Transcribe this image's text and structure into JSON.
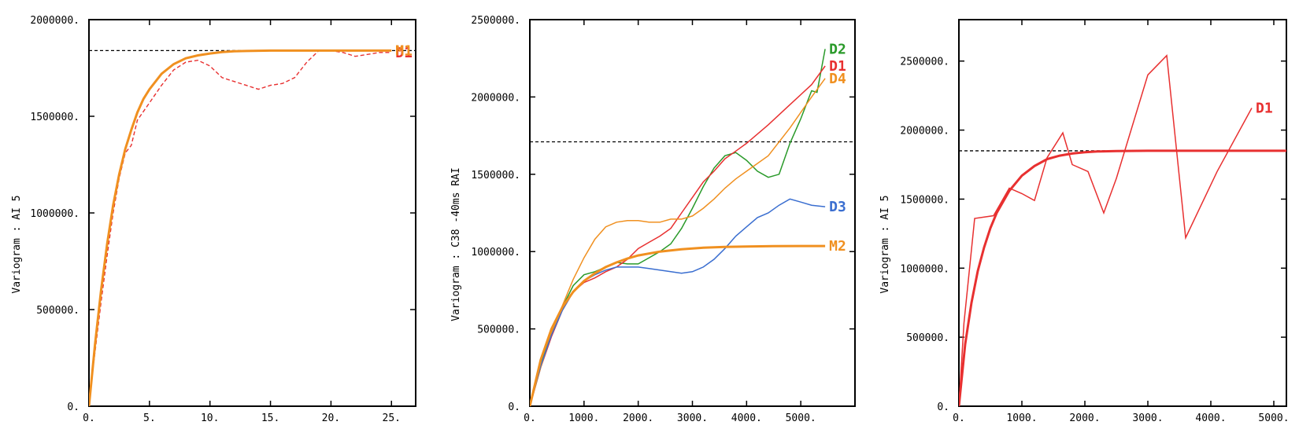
{
  "chart_data": [
    {
      "type": "line",
      "ylabel": "Variogram : AI 5",
      "xlim": [
        0,
        27
      ],
      "ylim": [
        0,
        2000000
      ],
      "xticks": [
        0,
        5,
        10,
        15,
        20,
        25
      ],
      "xtick_labels": [
        "0.",
        "5.",
        "10.",
        "15.",
        "20.",
        "25."
      ],
      "yticks": [
        0,
        500000,
        1000000,
        1500000,
        2000000
      ],
      "ytick_labels": [
        "0.",
        "500000.",
        "1000000.",
        "1500000.",
        "2000000."
      ],
      "sill": 1840000,
      "series": [
        {
          "name": "D1",
          "label": "D1",
          "color": "#e83030",
          "style": "dashed",
          "x": [
            0,
            0.5,
            1,
            1.5,
            2,
            2.5,
            3,
            3.5,
            4,
            5,
            6,
            7,
            8,
            9,
            10,
            11,
            12,
            13,
            14,
            15,
            16,
            17,
            18,
            19,
            20,
            21,
            22,
            23,
            24,
            25
          ],
          "y": [
            30000,
            280000,
            540000,
            780000,
            1000000,
            1180000,
            1310000,
            1350000,
            1480000,
            1570000,
            1660000,
            1740000,
            1780000,
            1790000,
            1760000,
            1700000,
            1680000,
            1660000,
            1640000,
            1660000,
            1670000,
            1700000,
            1780000,
            1840000,
            1840000,
            1830000,
            1810000,
            1820000,
            1830000,
            1830000
          ]
        },
        {
          "name": "M1",
          "label": "M1",
          "color": "#f09020",
          "style": "solid-thick",
          "x": [
            0,
            0.5,
            1,
            1.5,
            2,
            2.5,
            3,
            3.5,
            4,
            4.5,
            5,
            6,
            7,
            8,
            9,
            10,
            11,
            12,
            13,
            14,
            15,
            17,
            19,
            21,
            23,
            25
          ],
          "y": [
            0,
            320000,
            600000,
            840000,
            1040000,
            1200000,
            1330000,
            1430000,
            1520000,
            1590000,
            1640000,
            1720000,
            1770000,
            1800000,
            1815000,
            1825000,
            1832000,
            1836000,
            1838000,
            1839000,
            1840000,
            1840000,
            1840000,
            1840000,
            1840000,
            1840000
          ]
        }
      ]
    },
    {
      "type": "line",
      "ylabel": "Variogram : C38 -40ms RAI",
      "xlim": [
        0,
        6000
      ],
      "ylim": [
        0,
        2500000
      ],
      "xticks": [
        0,
        1000,
        2000,
        3000,
        4000,
        5000
      ],
      "xtick_labels": [
        "0.",
        "1000.",
        "2000.",
        "3000.",
        "4000.",
        "5000."
      ],
      "yticks": [
        0,
        500000,
        1000000,
        1500000,
        2000000,
        2500000
      ],
      "ytick_labels": [
        "0.",
        "500000.",
        "1000000.",
        "1500000.",
        "2000000.",
        "2500000."
      ],
      "sill": 1710000,
      "series": [
        {
          "name": "D2",
          "label": "D2",
          "color": "#2a9a2a",
          "style": "solid",
          "x": [
            0,
            200,
            400,
            600,
            800,
            1000,
            1200,
            1400,
            1600,
            1800,
            2000,
            2200,
            2400,
            2600,
            2800,
            3000,
            3200,
            3400,
            3600,
            3800,
            4000,
            4200,
            4400,
            4600,
            4800,
            5000,
            5200,
            5300,
            5450
          ],
          "y": [
            0,
            280000,
            480000,
            640000,
            780000,
            850000,
            870000,
            900000,
            930000,
            920000,
            920000,
            960000,
            1000000,
            1050000,
            1150000,
            1280000,
            1420000,
            1540000,
            1620000,
            1640000,
            1590000,
            1520000,
            1480000,
            1500000,
            1700000,
            1860000,
            2040000,
            2030000,
            2310000
          ]
        },
        {
          "name": "D1",
          "label": "D1",
          "color": "#e83030",
          "style": "solid",
          "x": [
            0,
            200,
            400,
            600,
            800,
            1000,
            1200,
            1400,
            1600,
            1800,
            2000,
            2200,
            2400,
            2600,
            2800,
            3000,
            3200,
            3400,
            3600,
            3800,
            4000,
            4400,
            4800,
            5200,
            5450
          ],
          "y": [
            0,
            250000,
            450000,
            620000,
            740000,
            800000,
            830000,
            870000,
            900000,
            950000,
            1020000,
            1060000,
            1100000,
            1150000,
            1250000,
            1350000,
            1450000,
            1520000,
            1600000,
            1650000,
            1700000,
            1820000,
            1950000,
            2080000,
            2200000
          ]
        },
        {
          "name": "D4",
          "label": "D4",
          "color": "#f09020",
          "style": "solid",
          "x": [
            0,
            200,
            400,
            600,
            800,
            1000,
            1200,
            1400,
            1600,
            1800,
            2000,
            2200,
            2400,
            2600,
            2800,
            3000,
            3200,
            3400,
            3600,
            3800,
            4000,
            4400,
            4800,
            5200,
            5450
          ],
          "y": [
            0,
            250000,
            470000,
            650000,
            820000,
            960000,
            1080000,
            1160000,
            1190000,
            1200000,
            1200000,
            1190000,
            1190000,
            1210000,
            1210000,
            1230000,
            1280000,
            1340000,
            1410000,
            1470000,
            1520000,
            1620000,
            1800000,
            2000000,
            2120000
          ]
        },
        {
          "name": "D3",
          "label": "D3",
          "color": "#3a6ed0",
          "style": "solid",
          "x": [
            0,
            200,
            400,
            600,
            800,
            1000,
            1200,
            1400,
            1600,
            1800,
            2000,
            2200,
            2400,
            2600,
            2800,
            3000,
            3200,
            3400,
            3600,
            3800,
            4000,
            4200,
            4400,
            4600,
            4800,
            5000,
            5200,
            5450
          ],
          "y": [
            0,
            260000,
            460000,
            620000,
            740000,
            810000,
            850000,
            880000,
            900000,
            900000,
            900000,
            890000,
            880000,
            870000,
            860000,
            870000,
            900000,
            950000,
            1020000,
            1100000,
            1160000,
            1220000,
            1250000,
            1300000,
            1340000,
            1320000,
            1300000,
            1290000
          ]
        },
        {
          "name": "M2",
          "label": "M2",
          "color": "#f09020",
          "style": "solid-thick",
          "x": [
            0,
            200,
            400,
            600,
            800,
            1000,
            1200,
            1400,
            1600,
            1800,
            2000,
            2400,
            2800,
            3200,
            3600,
            4000,
            4500,
            5000,
            5450
          ],
          "y": [
            0,
            300000,
            500000,
            640000,
            740000,
            810000,
            860000,
            900000,
            930000,
            955000,
            975000,
            1000000,
            1015000,
            1025000,
            1030000,
            1033000,
            1035000,
            1036000,
            1036000
          ]
        }
      ]
    },
    {
      "type": "line",
      "ylabel": "Variogram : AI 5",
      "xlim": [
        0,
        5200
      ],
      "ylim": [
        0,
        2800000
      ],
      "xticks": [
        0,
        1000,
        2000,
        3000,
        4000,
        5000
      ],
      "xtick_labels": [
        "0.",
        "1000.",
        "2000.",
        "3000.",
        "4000.",
        "5000."
      ],
      "yticks": [
        0,
        500000,
        1000000,
        1500000,
        2000000,
        2500000
      ],
      "ytick_labels": [
        "0.",
        "500000.",
        "1000000.",
        "1500000.",
        "2000000.",
        "2500000."
      ],
      "sill": 1850000,
      "series": [
        {
          "name": "D1",
          "label": "D1",
          "color": "#e83030",
          "style": "solid",
          "x": [
            0,
            80,
            250,
            550,
            800,
            1000,
            1200,
            1400,
            1650,
            1800,
            2050,
            2300,
            2500,
            2700,
            3000,
            3300,
            3600,
            4100,
            4650
          ],
          "y": [
            0,
            600000,
            1360000,
            1380000,
            1580000,
            1540000,
            1490000,
            1800000,
            1980000,
            1750000,
            1700000,
            1400000,
            1650000,
            1950000,
            2400000,
            2540000,
            1220000,
            1700000,
            2160000
          ]
        },
        {
          "name": "M",
          "label": "",
          "color": "#e83030",
          "style": "solid-thick",
          "x": [
            0,
            100,
            200,
            300,
            400,
            500,
            600,
            800,
            1000,
            1200,
            1400,
            1600,
            1800,
            2000,
            2200,
            2500,
            3000,
            3500,
            4000,
            4500,
            5000,
            5200
          ],
          "y": [
            0,
            450000,
            750000,
            980000,
            1150000,
            1290000,
            1400000,
            1560000,
            1670000,
            1740000,
            1790000,
            1815000,
            1830000,
            1840000,
            1845000,
            1848000,
            1850000,
            1850000,
            1850000,
            1850000,
            1850000,
            1850000
          ]
        }
      ]
    }
  ]
}
